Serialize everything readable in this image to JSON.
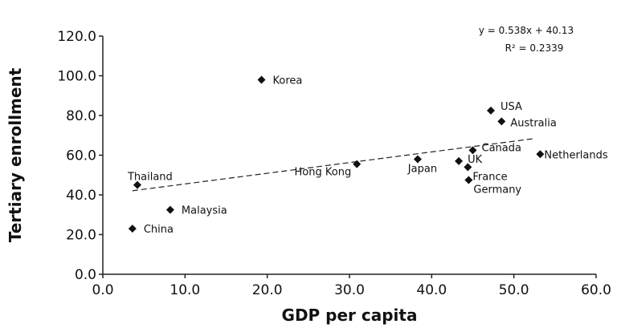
{
  "chart_data": {
    "type": "scatter",
    "title": "",
    "xlabel": "GDP per capita",
    "ylabel": "Tertiary enrollment",
    "xlim": [
      0,
      60
    ],
    "ylim": [
      0,
      120
    ],
    "x_ticks": [
      "0.0",
      "10.0",
      "20.0",
      "30.0",
      "40.0",
      "50.0",
      "60.0"
    ],
    "y_ticks": [
      "0.0",
      "20.0",
      "40.0",
      "60.0",
      "80.0",
      "100.0",
      "120.0"
    ],
    "grid": false,
    "marker": "diamond",
    "color": "#111111",
    "points": [
      {
        "label": "Korea",
        "x": 19.3,
        "y": 98.0
      },
      {
        "label": "USA",
        "x": 47.2,
        "y": 82.5
      },
      {
        "label": "Australia",
        "x": 48.5,
        "y": 77.0
      },
      {
        "label": "Canada",
        "x": 45.0,
        "y": 62.5
      },
      {
        "label": "Netherlands",
        "x": 53.2,
        "y": 60.5
      },
      {
        "label": "Hong Kong",
        "x": 30.9,
        "y": 55.5
      },
      {
        "label": "Japan",
        "x": 38.3,
        "y": 58.0
      },
      {
        "label": "UK",
        "x": 43.3,
        "y": 57.0
      },
      {
        "label": "France",
        "x": 44.4,
        "y": 54.0
      },
      {
        "label": "Germany",
        "x": 44.5,
        "y": 47.5
      },
      {
        "label": "Thailand",
        "x": 4.2,
        "y": 45.0
      },
      {
        "label": "Malaysia",
        "x": 8.2,
        "y": 32.5
      },
      {
        "label": "China",
        "x": 3.6,
        "y": 23.0
      }
    ],
    "trendline": {
      "style": "dashed",
      "slope": 0.538,
      "intercept": 40.13,
      "x_range": [
        3.6,
        52.5
      ]
    },
    "equation": "y = 0.538x + 40.13",
    "r_squared": "R² = 0.2339"
  }
}
